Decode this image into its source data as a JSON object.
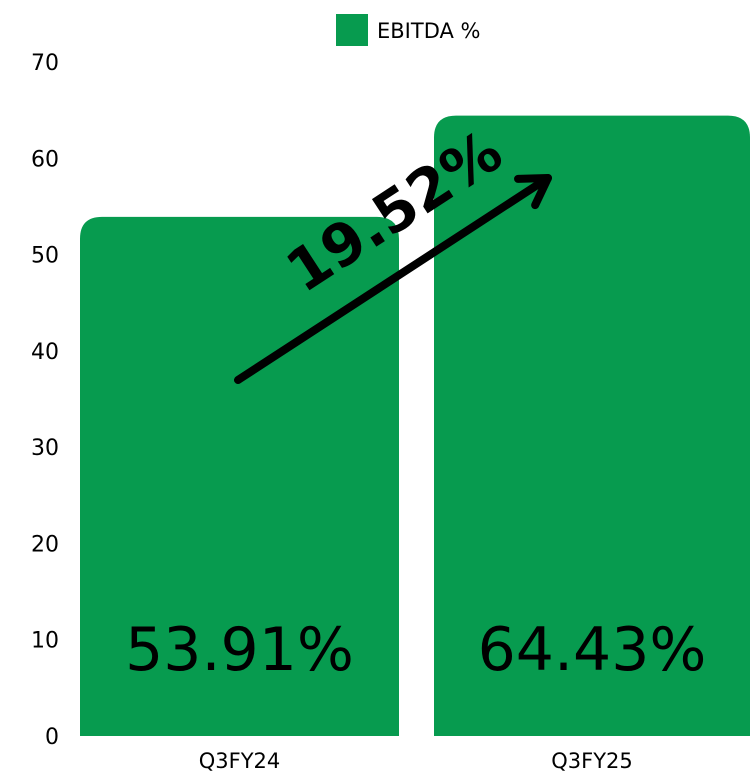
{
  "chart_data": {
    "type": "bar",
    "categories": [
      "Q3FY24",
      "Q3FY25"
    ],
    "series": [
      {
        "name": "EBITDA %",
        "values": [
          53.91,
          64.43
        ],
        "color": "#079b4f"
      }
    ],
    "data_labels": [
      "53.91%",
      "64.43%"
    ],
    "ylim": [
      0,
      70
    ],
    "yticks": [
      0,
      10,
      20,
      30,
      40,
      50,
      60,
      70
    ],
    "legend": {
      "label": "EBITDA %",
      "placement": "top-center"
    },
    "annotation": {
      "text": "19.52%",
      "style": "upward arrow from Q3FY24 to Q3FY25"
    },
    "grid": false,
    "title": "",
    "xlabel": "",
    "ylabel": ""
  }
}
